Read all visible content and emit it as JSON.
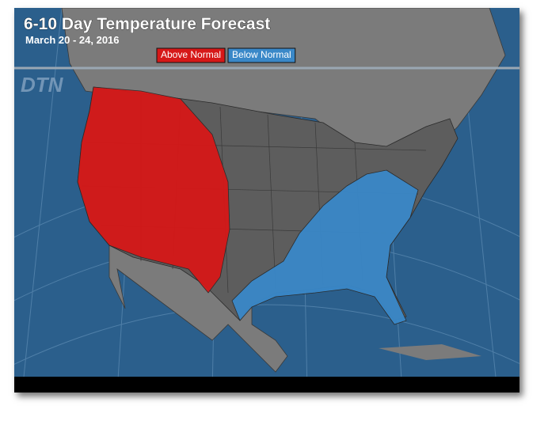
{
  "header": {
    "title": "6-10 Day Temperature Forecast",
    "subtitle": "March 20 - 24, 2016",
    "logo": "DTN"
  },
  "legend": {
    "items": [
      {
        "label": "Above Normal",
        "color": "#d61818"
      },
      {
        "label": "Below Normal",
        "color": "#3a88c8"
      }
    ]
  }
}
